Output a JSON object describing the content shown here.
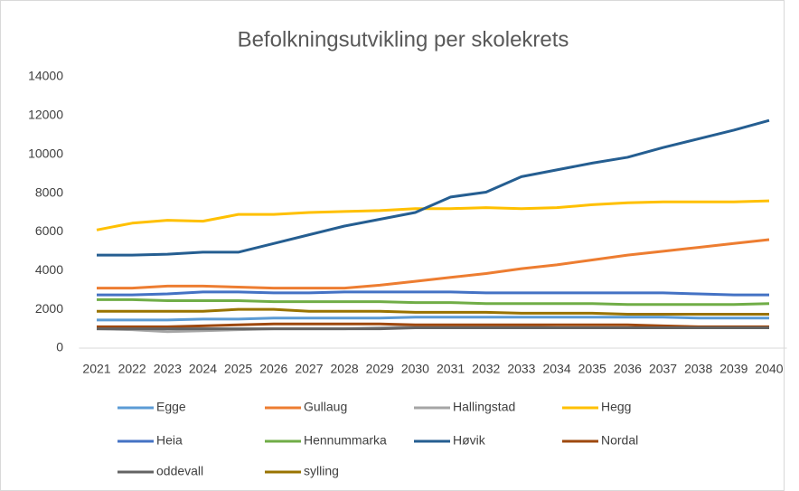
{
  "chart_data": {
    "type": "line",
    "title": "Befolkningsutvikling per skolekrets",
    "categories": [
      "2021",
      "2022",
      "2023",
      "2024",
      "2025",
      "2026",
      "2027",
      "2028",
      "2029",
      "2030",
      "2031",
      "2032",
      "2033",
      "2034",
      "2035",
      "2036",
      "2037",
      "2038",
      "2039",
      "2040"
    ],
    "ylim": [
      0,
      14000
    ],
    "yticks": [
      0,
      2000,
      4000,
      6000,
      8000,
      10000,
      12000,
      14000
    ],
    "grid": false,
    "legend": "bottom",
    "series": [
      {
        "name": "Egge",
        "color": "#5b9bd5",
        "values": [
          1450,
          1450,
          1450,
          1500,
          1500,
          1550,
          1550,
          1550,
          1550,
          1600,
          1600,
          1600,
          1600,
          1600,
          1600,
          1600,
          1600,
          1550,
          1550,
          1550
        ]
      },
      {
        "name": "Gullaug",
        "color": "#ed7d31",
        "values": [
          3100,
          3100,
          3200,
          3200,
          3150,
          3100,
          3100,
          3100,
          3250,
          3450,
          3650,
          3850,
          4100,
          4300,
          4550,
          4800,
          5000,
          5200,
          5400,
          5600
        ]
      },
      {
        "name": "Hallingstad",
        "color": "#a5a5a5",
        "values": [
          1000,
          950,
          850,
          900,
          950,
          1000,
          1000,
          1000,
          1050,
          1100,
          1100,
          1100,
          1100,
          1050,
          1050,
          1050,
          1050,
          1050,
          1050,
          1050
        ]
      },
      {
        "name": "Hegg",
        "color": "#ffc000",
        "values": [
          6100,
          6450,
          6600,
          6550,
          6900,
          6900,
          7000,
          7050,
          7100,
          7200,
          7200,
          7250,
          7200,
          7250,
          7400,
          7500,
          7550,
          7550,
          7550,
          7600
        ]
      },
      {
        "name": "Heia",
        "color": "#4472c4",
        "values": [
          2750,
          2750,
          2800,
          2900,
          2900,
          2850,
          2850,
          2900,
          2900,
          2900,
          2900,
          2850,
          2850,
          2850,
          2850,
          2850,
          2850,
          2800,
          2750,
          2750
        ]
      },
      {
        "name": "Hennummarka",
        "color": "#70ad47",
        "values": [
          2500,
          2500,
          2450,
          2450,
          2450,
          2400,
          2400,
          2400,
          2400,
          2350,
          2350,
          2300,
          2300,
          2300,
          2300,
          2250,
          2250,
          2250,
          2250,
          2300
        ]
      },
      {
        "name": "Høvik",
        "color": "#255e91",
        "values": [
          4800,
          4800,
          4850,
          4950,
          4950,
          5400,
          5850,
          6300,
          6650,
          7000,
          7800,
          8050,
          8850,
          9200,
          9550,
          9850,
          10350,
          10800,
          11250,
          11750
        ]
      },
      {
        "name": "Nordal",
        "color": "#9e480e",
        "values": [
          1100,
          1100,
          1100,
          1150,
          1200,
          1250,
          1250,
          1250,
          1250,
          1200,
          1200,
          1200,
          1200,
          1200,
          1200,
          1200,
          1150,
          1100,
          1100,
          1100
        ]
      },
      {
        "name": "oddevall",
        "color": "#636363",
        "values": [
          1000,
          1000,
          1000,
          1000,
          1000,
          1000,
          1000,
          1000,
          1000,
          1050,
          1050,
          1050,
          1050,
          1050,
          1050,
          1050,
          1050,
          1050,
          1050,
          1050
        ]
      },
      {
        "name": "sylling",
        "color": "#997300",
        "values": [
          1900,
          1900,
          1900,
          1900,
          2000,
          2000,
          1900,
          1900,
          1900,
          1850,
          1850,
          1850,
          1800,
          1800,
          1800,
          1750,
          1750,
          1750,
          1750,
          1750
        ]
      }
    ]
  }
}
